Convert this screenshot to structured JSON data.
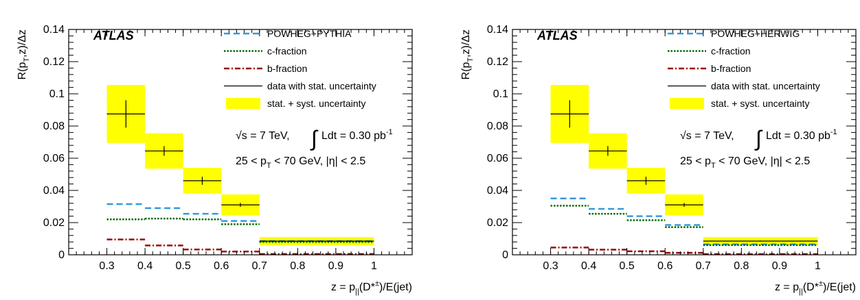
{
  "chart_data": [
    {
      "type": "step",
      "xlim": [
        0.2,
        1.1
      ],
      "ylim": [
        0,
        0.14
      ],
      "xticks": [
        "0.3",
        "0.4",
        "0.5",
        "0.6",
        "0.7",
        "0.8",
        "0.9",
        "1"
      ],
      "xtick_values": [
        0.3,
        0.4,
        0.5,
        0.6,
        0.7,
        0.8,
        0.9,
        1.0
      ],
      "yticks": [
        "0",
        "0.02",
        "0.04",
        "0.06",
        "0.08",
        "0.1",
        "0.12",
        "0.14"
      ],
      "ytick_values": [
        0,
        0.02,
        0.04,
        0.06,
        0.08,
        0.1,
        0.12,
        0.14
      ],
      "xlabel": {
        "main": "z = p",
        "sub": "||",
        "mid": "(D*",
        "sup": "±",
        "end": ")/E(jet)"
      },
      "ylabel": {
        "main": "R(p",
        "sub": "T",
        "end": ",z)/Δz"
      },
      "experiment_label": "ATLAS",
      "legend_position": "top-right",
      "legend": [
        {
          "label": "POWHEG+PYTHIA",
          "style": "dashed",
          "color": "#3399dd"
        },
        {
          "label": "c-fraction",
          "style": "dotted",
          "color": "#006600"
        },
        {
          "label": "b-fraction",
          "style": "dashdot",
          "color": "#990000"
        },
        {
          "label": "data with stat. uncertainty",
          "style": "line",
          "color": "#000000"
        },
        {
          "label": "stat. + syst. uncertainty",
          "style": "band",
          "color": "#ffff00"
        }
      ],
      "annotation_energy": {
        "sqrt": "√s = 7 TeV,",
        "lumi": "Ldt = 0.30 pb",
        "lumi_sup": "-1"
      },
      "annotation_cuts": {
        "a": "25 < p",
        "sub": "T",
        "b": " < 70 GeV, |η| < 2.5"
      },
      "bins": [
        [
          0.3,
          0.4
        ],
        [
          0.4,
          0.5
        ],
        [
          0.5,
          0.6
        ],
        [
          0.6,
          0.7
        ],
        [
          0.7,
          1.0
        ]
      ],
      "data": [
        0.0875,
        0.0645,
        0.046,
        0.031,
        0.0085
      ],
      "stat_err": [
        0.0085,
        0.003,
        0.0025,
        0.0012,
        0.0003
      ],
      "total_err": [
        0.018,
        0.011,
        0.008,
        0.0065,
        0.0025
      ],
      "mc": [
        0.0315,
        0.029,
        0.0255,
        0.021,
        0.0085
      ],
      "c_fraction": [
        0.022,
        0.0225,
        0.022,
        0.019,
        0.008
      ],
      "b_fraction": [
        0.0095,
        0.0058,
        0.0033,
        0.002,
        0.0005
      ]
    },
    {
      "type": "step",
      "xlim": [
        0.2,
        1.1
      ],
      "ylim": [
        0,
        0.14
      ],
      "xticks": [
        "0.3",
        "0.4",
        "0.5",
        "0.6",
        "0.7",
        "0.8",
        "0.9",
        "1"
      ],
      "xtick_values": [
        0.3,
        0.4,
        0.5,
        0.6,
        0.7,
        0.8,
        0.9,
        1.0
      ],
      "yticks": [
        "0",
        "0.02",
        "0.04",
        "0.06",
        "0.08",
        "0.1",
        "0.12",
        "0.14"
      ],
      "ytick_values": [
        0,
        0.02,
        0.04,
        0.06,
        0.08,
        0.1,
        0.12,
        0.14
      ],
      "xlabel": {
        "main": "z = p",
        "sub": "||",
        "mid": "(D*",
        "sup": "±",
        "end": ")/E(jet)"
      },
      "ylabel": {
        "main": "R(p",
        "sub": "T",
        "end": ",z)/Δz"
      },
      "experiment_label": "ATLAS",
      "legend_position": "top-right",
      "legend": [
        {
          "label": "POWHEG+HERWIG",
          "style": "dashed",
          "color": "#3399dd"
        },
        {
          "label": "c-fraction",
          "style": "dotted",
          "color": "#006600"
        },
        {
          "label": "b-fraction",
          "style": "dashdot",
          "color": "#990000"
        },
        {
          "label": "data with stat. uncertainty",
          "style": "line",
          "color": "#000000"
        },
        {
          "label": "stat. + syst. uncertainty",
          "style": "band",
          "color": "#ffff00"
        }
      ],
      "annotation_energy": {
        "sqrt": "√s = 7 TeV,",
        "lumi": "Ldt = 0.30 pb",
        "lumi_sup": "-1"
      },
      "annotation_cuts": {
        "a": "25 < p",
        "sub": "T",
        "b": " < 70 GeV, |η| < 2.5"
      },
      "bins": [
        [
          0.3,
          0.4
        ],
        [
          0.4,
          0.5
        ],
        [
          0.5,
          0.6
        ],
        [
          0.6,
          0.7
        ],
        [
          0.7,
          1.0
        ]
      ],
      "data": [
        0.0875,
        0.0645,
        0.046,
        0.031,
        0.0085
      ],
      "stat_err": [
        0.0085,
        0.003,
        0.0025,
        0.0012,
        0.0003
      ],
      "total_err": [
        0.018,
        0.011,
        0.008,
        0.0065,
        0.0025
      ],
      "mc": [
        0.035,
        0.0285,
        0.024,
        0.0185,
        0.0065
      ],
      "c_fraction": [
        0.0305,
        0.0255,
        0.0215,
        0.0172,
        0.006
      ],
      "b_fraction": [
        0.0045,
        0.0032,
        0.0022,
        0.0012,
        0.0004
      ]
    }
  ]
}
